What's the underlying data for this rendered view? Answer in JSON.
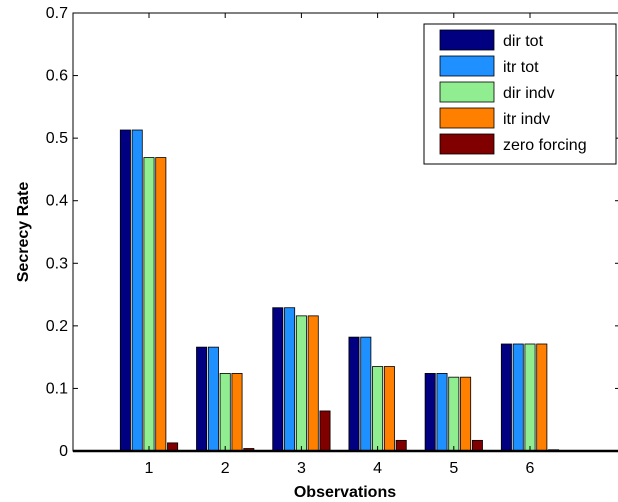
{
  "chart_data": {
    "type": "bar",
    "title": "",
    "xlabel": "Observations",
    "ylabel": "Secrecy Rate",
    "categories": [
      "1",
      "2",
      "3",
      "4",
      "5",
      "6"
    ],
    "ylim": [
      0,
      0.7
    ],
    "yticks": [
      0,
      0.1,
      0.2,
      0.3,
      0.4,
      0.5,
      0.6,
      0.7
    ],
    "yticklabels": [
      "0",
      "0.1",
      "0.2",
      "0.3",
      "0.4",
      "0.5",
      "0.6",
      "0.7"
    ],
    "grid": false,
    "legend_position": "top-right",
    "series": [
      {
        "name": "dir tot",
        "color": "#000080",
        "values": [
          0.513,
          0.166,
          0.229,
          0.182,
          0.124,
          0.171
        ]
      },
      {
        "name": "itr tot",
        "color": "#1E90FF",
        "values": [
          0.513,
          0.166,
          0.229,
          0.182,
          0.124,
          0.171
        ]
      },
      {
        "name": "dir indv",
        "color": "#90EE90",
        "values": [
          0.469,
          0.124,
          0.216,
          0.135,
          0.118,
          0.171
        ]
      },
      {
        "name": "itr indv",
        "color": "#FF7F00",
        "values": [
          0.469,
          0.124,
          0.216,
          0.135,
          0.118,
          0.171
        ]
      },
      {
        "name": "zero forcing",
        "color": "#800000",
        "values": [
          0.013,
          0.004,
          0.064,
          0.017,
          0.017,
          0.002
        ]
      }
    ]
  }
}
